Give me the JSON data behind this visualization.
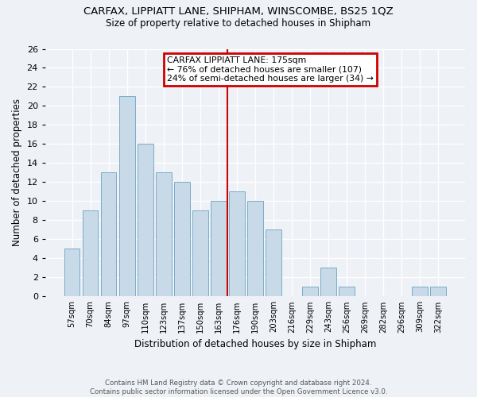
{
  "title1": "CARFAX, LIPPIATT LANE, SHIPHAM, WINSCOMBE, BS25 1QZ",
  "title2": "Size of property relative to detached houses in Shipham",
  "xlabel": "Distribution of detached houses by size in Shipham",
  "ylabel": "Number of detached properties",
  "footnote1": "Contains HM Land Registry data © Crown copyright and database right 2024.",
  "footnote2": "Contains public sector information licensed under the Open Government Licence v3.0.",
  "annotation_title": "CARFAX LIPPIATT LANE: 175sqm",
  "annotation_line1": "← 76% of detached houses are smaller (107)",
  "annotation_line2": "24% of semi-detached houses are larger (34) →",
  "bar_labels": [
    "57sqm",
    "70sqm",
    "84sqm",
    "97sqm",
    "110sqm",
    "123sqm",
    "137sqm",
    "150sqm",
    "163sqm",
    "176sqm",
    "190sqm",
    "203sqm",
    "216sqm",
    "229sqm",
    "243sqm",
    "256sqm",
    "269sqm",
    "282sqm",
    "296sqm",
    "309sqm",
    "322sqm"
  ],
  "bar_values": [
    5,
    9,
    13,
    21,
    16,
    13,
    12,
    9,
    10,
    11,
    10,
    7,
    0,
    1,
    3,
    1,
    0,
    0,
    0,
    1,
    1
  ],
  "bar_color": "#c8d9e8",
  "bar_edge_color": "#7aacc8",
  "vline_color": "#cc0000",
  "annotation_box_color": "#cc0000",
  "background_color": "#eef2f7",
  "ylim": [
    0,
    26
  ],
  "yticks": [
    0,
    2,
    4,
    6,
    8,
    10,
    12,
    14,
    16,
    18,
    20,
    22,
    24,
    26
  ]
}
